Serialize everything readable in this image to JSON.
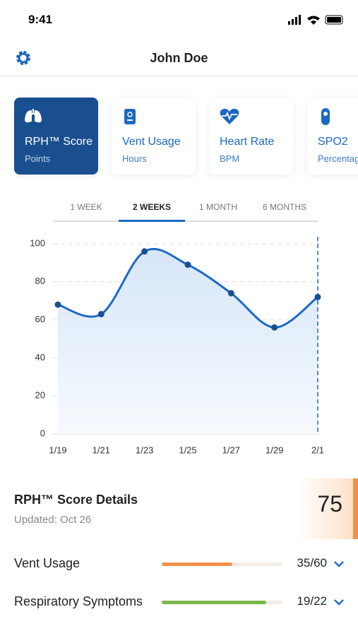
{
  "status_bar": {
    "time": "9:41"
  },
  "header": {
    "title": "John Doe"
  },
  "cards": [
    {
      "title": "RPH™ Score",
      "subtitle": "Points"
    },
    {
      "title": "Vent Usage",
      "subtitle": "Hours"
    },
    {
      "title": "Heart Rate",
      "subtitle": "BPM"
    },
    {
      "title": "SPO2",
      "subtitle": "Percentage"
    }
  ],
  "tabs": [
    "1 WEEK",
    "2 WEEKS",
    "1 MONTH",
    "6 MONTHS"
  ],
  "chart": {
    "type": "line",
    "categories": [
      "1/19",
      "1/21",
      "1/23",
      "1/25",
      "1/27",
      "1/29",
      "2/1"
    ],
    "values": [
      68,
      63,
      96,
      89,
      74,
      56,
      72
    ],
    "color": "#1c68c8",
    "ylim": [
      0,
      100
    ],
    "yticks": [
      0,
      20,
      40,
      60,
      80,
      100
    ],
    "grid": true
  },
  "details": {
    "title": "RPH™ Score Details",
    "updated": "Updated: Oct 26",
    "score": 75,
    "rows": [
      {
        "name": "Vent Usage",
        "value": 35,
        "max": 60,
        "value_label": "35/60",
        "color": "#f0924a"
      },
      {
        "name": "Respiratory Symptoms",
        "value": 19,
        "max": 22,
        "value_label": "19/22",
        "color": "#7ab648"
      }
    ]
  }
}
